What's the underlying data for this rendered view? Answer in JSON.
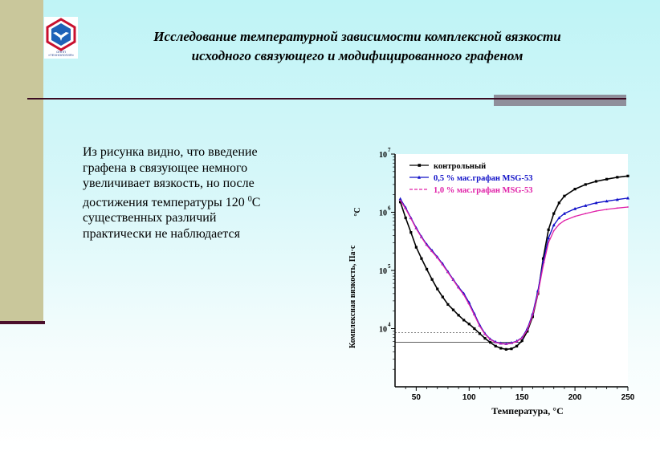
{
  "slide": {
    "title_line1": "Исследование температурной зависимости комплексной вязкости",
    "title_line2": "исходного связующего и модифицированного графеном",
    "body_line1": "Из рисунка видно, что введение",
    "body_line2": "графена в связующее немного",
    "body_line3": "увеличивает вязкость, но после",
    "body_line4_pre": "достижения температуры 120",
    "body_line4_sup": "0",
    "body_line4_post": "С",
    "body_line5": "существенных различий",
    "body_line6": "практически не наблюдается",
    "logo_icon": "bird-in-hexagon-logo-icon",
    "logo_caption": "ОНПП «ТЕХНОЛОГИЯ»"
  },
  "colors": {
    "background_top": "#bff4f6",
    "left_band": "#c9c79b",
    "rule": "#3a0b22",
    "series_control": "#000000",
    "series_05": "#1010c8",
    "series_10": "#e020a8",
    "logo_red": "#c8102e",
    "logo_blue": "#1e62b8"
  },
  "chart_data": {
    "type": "line",
    "title": "",
    "xlabel": "Температура, °С",
    "ylabel": "Комплексная вязкость, Па·с",
    "ylabel_rotated_units": "°С",
    "y_scale": "log",
    "xlim": [
      30,
      250
    ],
    "ylim": [
      1000,
      10000000
    ],
    "x_ticks": [
      50,
      100,
      150,
      200,
      250
    ],
    "x_tick_labels": [
      "50",
      "100",
      "150",
      "200",
      "250"
    ],
    "y_ticks": [
      10000,
      100000,
      1000000,
      10000000
    ],
    "y_tick_labels": [
      {
        "base": "10",
        "exp": "4"
      },
      {
        "base": "10",
        "exp": "5"
      },
      {
        "base": "10",
        "exp": "6"
      },
      {
        "base": "10",
        "exp": "7"
      }
    ],
    "legend_position": "top-right",
    "grid": false,
    "series": [
      {
        "name": "контрольный",
        "marker": "square",
        "x": [
          35,
          40,
          45,
          50,
          55,
          60,
          65,
          70,
          75,
          80,
          85,
          90,
          95,
          100,
          105,
          110,
          115,
          120,
          125,
          130,
          135,
          140,
          145,
          150,
          155,
          160,
          165,
          170,
          175,
          180,
          185,
          190,
          200,
          210,
          220,
          230,
          240,
          250
        ],
        "y": [
          1500000,
          800000,
          450000,
          250000,
          160000,
          105000,
          70000,
          48000,
          35000,
          26000,
          21000,
          17000,
          14000,
          12000,
          10000,
          8200,
          6800,
          5800,
          5000,
          4600,
          4400,
          4500,
          5000,
          6200,
          9000,
          16000,
          40000,
          160000,
          500000,
          950000,
          1450000,
          1900000,
          2500000,
          3000000,
          3400000,
          3700000,
          4000000,
          4200000
        ]
      },
      {
        "name": "0,5 % мас.графан MSG-53",
        "marker": "triangle",
        "x": [
          35,
          40,
          45,
          50,
          55,
          60,
          65,
          70,
          75,
          80,
          85,
          90,
          95,
          100,
          105,
          110,
          115,
          120,
          125,
          130,
          135,
          140,
          145,
          150,
          155,
          160,
          165,
          170,
          175,
          180,
          185,
          190,
          200,
          210,
          220,
          230,
          240,
          250
        ],
        "y": [
          1700000,
          1200000,
          800000,
          540000,
          380000,
          280000,
          220000,
          170000,
          130000,
          95000,
          70000,
          52000,
          40000,
          28000,
          18000,
          11500,
          8200,
          6600,
          5900,
          5600,
          5500,
          5700,
          6100,
          7000,
          10000,
          18000,
          45000,
          140000,
          360000,
          600000,
          800000,
          950000,
          1150000,
          1300000,
          1450000,
          1550000,
          1650000,
          1750000
        ]
      },
      {
        "name": "1,0 % мас.графан MSG-53",
        "marker": "none",
        "x": [
          35,
          40,
          45,
          50,
          55,
          60,
          65,
          70,
          75,
          80,
          85,
          90,
          95,
          100,
          105,
          110,
          115,
          120,
          125,
          130,
          135,
          140,
          145,
          150,
          155,
          160,
          165,
          170,
          175,
          180,
          185,
          190,
          200,
          210,
          220,
          230,
          240,
          250
        ],
        "y": [
          1600000,
          1150000,
          780000,
          520000,
          370000,
          270000,
          210000,
          165000,
          125000,
          92000,
          68000,
          50000,
          38000,
          26000,
          17000,
          11000,
          8000,
          6500,
          5800,
          5500,
          5400,
          5600,
          6000,
          6900,
          9500,
          17000,
          40000,
          120000,
          300000,
          480000,
          620000,
          720000,
          850000,
          950000,
          1050000,
          1120000,
          1180000,
          1230000
        ]
      }
    ]
  }
}
